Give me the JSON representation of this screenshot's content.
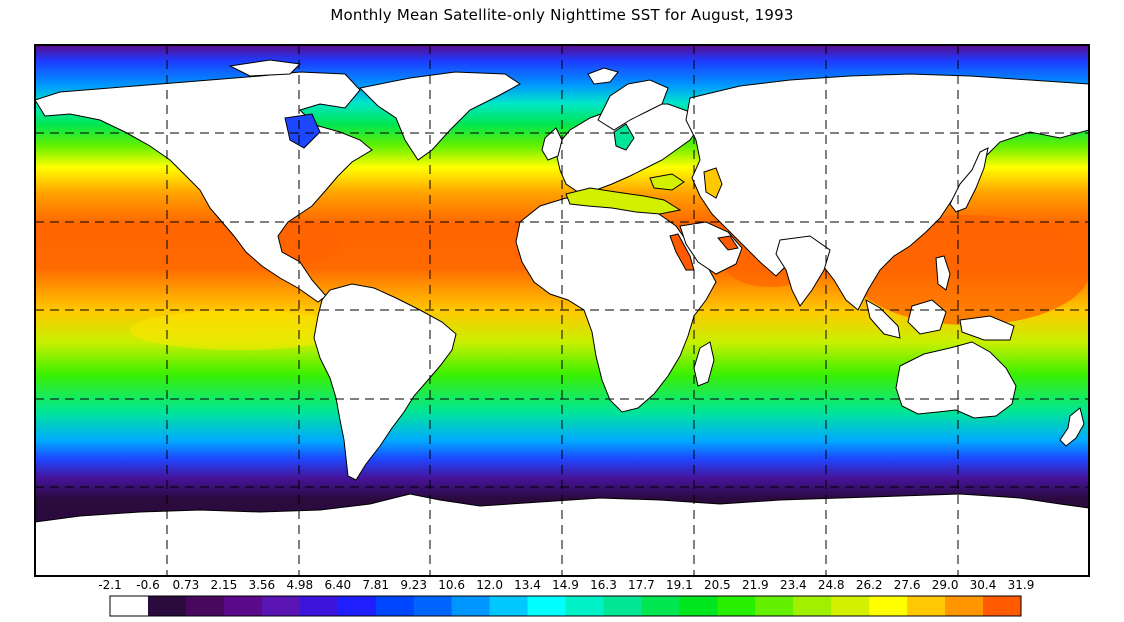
{
  "title": "Monthly Mean Satellite-only Nighttime SST for August, 1993",
  "map": {
    "projection": "equirectangular",
    "land_color": "#ffffff",
    "coastline_color": "#000000",
    "gridlines": "dashed",
    "lon_grid_count": 8,
    "lat_grid_count": 6
  },
  "colorbar": {
    "labels": [
      "-2.1",
      "-0.6",
      "0.73",
      "2.15",
      "3.56",
      "4.98",
      "6.40",
      "7.81",
      "9.23",
      "10.6",
      "12.0",
      "13.4",
      "14.9",
      "16.3",
      "17.7",
      "19.1",
      "20.5",
      "21.9",
      "23.4",
      "24.8",
      "26.2",
      "27.6",
      "29.0",
      "30.4",
      "31.9"
    ],
    "colors": [
      "#ffffff",
      "#2b0a3d",
      "#48085e",
      "#5a0a8a",
      "#5a14b4",
      "#3c14dc",
      "#1e1eff",
      "#0046ff",
      "#0064ff",
      "#0096ff",
      "#00c8ff",
      "#00ffff",
      "#00f0c8",
      "#00e696",
      "#00e650",
      "#00e61e",
      "#28f000",
      "#64f000",
      "#a0f000",
      "#d2f000",
      "#ffff00",
      "#ffc800",
      "#ff9600",
      "#ff5a00",
      "#ff1e1e"
    ]
  }
}
